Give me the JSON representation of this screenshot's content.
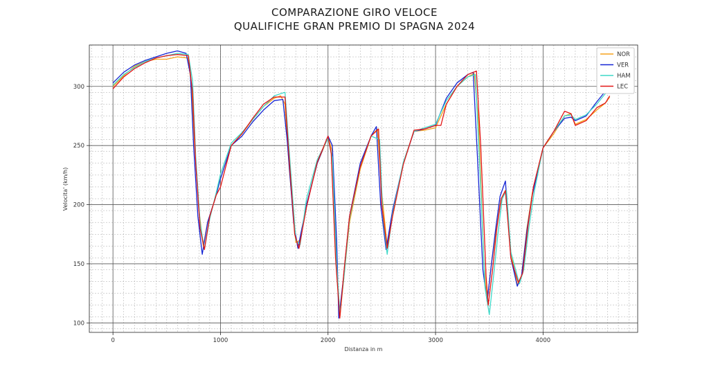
{
  "chart_data": {
    "type": "line",
    "title": "COMPARAZIONE GIRO VELOCE",
    "subtitle": "QUALIFICHE GRAN PREMIO DI SPAGNA 2024",
    "xlabel": "Distanza in m",
    "ylabel": "Velocita' (km/h)",
    "xlim": [
      -220,
      4880
    ],
    "ylim": [
      92,
      335
    ],
    "xticks": [
      0,
      1000,
      2000,
      3000,
      4000
    ],
    "xtick_labels": [
      "0",
      "1000",
      "2000",
      "3000",
      "4000"
    ],
    "yticks": [
      100,
      150,
      200,
      250,
      300
    ],
    "ytick_labels": [
      "100",
      "150",
      "200",
      "250",
      "300"
    ],
    "grid": true,
    "legend_position": "top-right",
    "series": [
      {
        "name": "NOR",
        "color": "#f5a21b",
        "x": [
          0,
          100,
          200,
          300,
          400,
          500,
          600,
          700,
          730,
          760,
          800,
          840,
          880,
          950,
          1000,
          1100,
          1200,
          1300,
          1400,
          1500,
          1560,
          1600,
          1640,
          1700,
          1740,
          1800,
          1900,
          2000,
          2040,
          2080,
          2110,
          2150,
          2200,
          2300,
          2400,
          2460,
          2500,
          2550,
          2600,
          2700,
          2800,
          2900,
          3000,
          3100,
          3200,
          3300,
          3360,
          3400,
          3450,
          3480,
          3520,
          3560,
          3600,
          3650,
          3700,
          3760,
          3800,
          3850,
          3900,
          4000,
          4100,
          4200,
          4260,
          4300,
          4400,
          4500,
          4580,
          4620
        ],
        "y": [
          300,
          309,
          317,
          321,
          323,
          323,
          325,
          324,
          300,
          250,
          195,
          165,
          185,
          205,
          222,
          250,
          260,
          272,
          283,
          290,
          292,
          285,
          230,
          168,
          170,
          200,
          235,
          257,
          245,
          150,
          105,
          140,
          185,
          230,
          258,
          264,
          210,
          165,
          190,
          235,
          262,
          263,
          265,
          285,
          300,
          308,
          311,
          270,
          150,
          118,
          150,
          175,
          200,
          212,
          160,
          132,
          140,
          180,
          210,
          248,
          260,
          275,
          277,
          268,
          272,
          280,
          286,
          291
        ]
      },
      {
        "name": "VER",
        "color": "#1524d4",
        "x": [
          0,
          100,
          200,
          300,
          400,
          500,
          600,
          680,
          720,
          750,
          790,
          830,
          880,
          950,
          1000,
          1100,
          1200,
          1300,
          1400,
          1500,
          1580,
          1620,
          1680,
          1720,
          1800,
          1900,
          2000,
          2040,
          2080,
          2100,
          2140,
          2200,
          2300,
          2400,
          2450,
          2490,
          2540,
          2600,
          2700,
          2800,
          2900,
          3000,
          3100,
          3200,
          3300,
          3350,
          3390,
          3440,
          3480,
          3520,
          3560,
          3600,
          3650,
          3700,
          3760,
          3800,
          3850,
          3900,
          4000,
          4100,
          4200,
          4260,
          4300,
          4400,
          4500,
          4580,
          4620
        ],
        "y": [
          303,
          312,
          318,
          322,
          325,
          328,
          330,
          328,
          310,
          250,
          190,
          158,
          185,
          205,
          222,
          250,
          258,
          270,
          280,
          288,
          289,
          255,
          185,
          163,
          200,
          235,
          258,
          250,
          170,
          104,
          135,
          190,
          235,
          258,
          266,
          200,
          162,
          195,
          235,
          262,
          264,
          267,
          290,
          303,
          310,
          312,
          240,
          145,
          118,
          150,
          180,
          207,
          220,
          155,
          131,
          140,
          178,
          208,
          248,
          262,
          273,
          274,
          271,
          275,
          287,
          296,
          300
        ]
      },
      {
        "name": "HAM",
        "color": "#3fd8c8",
        "x": [
          0,
          100,
          200,
          300,
          400,
          500,
          600,
          700,
          740,
          770,
          810,
          850,
          900,
          960,
          1000,
          1100,
          1200,
          1300,
          1400,
          1500,
          1600,
          1640,
          1700,
          1740,
          1800,
          1900,
          2000,
          2040,
          2080,
          2110,
          2150,
          2200,
          2300,
          2400,
          2480,
          2510,
          2550,
          2600,
          2700,
          2800,
          2900,
          3000,
          3100,
          3200,
          3300,
          3370,
          3410,
          3460,
          3500,
          3540,
          3580,
          3620,
          3660,
          3700,
          3780,
          3820,
          3870,
          3920,
          4000,
          4100,
          4200,
          4260,
          4300,
          4400,
          4500,
          4580,
          4620
        ],
        "y": [
          301,
          310,
          316,
          321,
          324,
          326,
          328,
          327,
          305,
          240,
          185,
          162,
          188,
          210,
          226,
          252,
          261,
          272,
          283,
          292,
          295,
          245,
          170,
          166,
          205,
          238,
          256,
          240,
          150,
          108,
          140,
          188,
          232,
          258,
          255,
          190,
          158,
          192,
          236,
          262,
          265,
          268,
          288,
          300,
          308,
          310,
          235,
          130,
          107,
          140,
          175,
          205,
          212,
          160,
          133,
          145,
          182,
          212,
          248,
          262,
          275,
          276,
          272,
          276,
          285,
          294,
          298
        ]
      },
      {
        "name": "LEC",
        "color": "#e21515",
        "x": [
          0,
          100,
          200,
          300,
          400,
          500,
          600,
          700,
          740,
          770,
          810,
          850,
          900,
          960,
          1000,
          1100,
          1200,
          1300,
          1400,
          1500,
          1600,
          1630,
          1690,
          1730,
          1800,
          1900,
          2000,
          2030,
          2070,
          2110,
          2150,
          2200,
          2300,
          2400,
          2470,
          2500,
          2550,
          2600,
          2700,
          2800,
          2900,
          3000,
          3050,
          3100,
          3200,
          3300,
          3380,
          3420,
          3470,
          3490,
          3530,
          3570,
          3610,
          3650,
          3700,
          3770,
          3810,
          3860,
          3910,
          4000,
          4100,
          4200,
          4260,
          4300,
          4400,
          4500,
          4580,
          4620
        ],
        "y": [
          298,
          308,
          315,
          320,
          324,
          326,
          327,
          326,
          295,
          235,
          180,
          162,
          190,
          208,
          215,
          250,
          260,
          273,
          285,
          291,
          291,
          250,
          175,
          163,
          198,
          236,
          258,
          243,
          155,
          104,
          145,
          190,
          232,
          258,
          264,
          200,
          163,
          190,
          234,
          263,
          264,
          267,
          267,
          285,
          300,
          310,
          313,
          250,
          140,
          115,
          145,
          180,
          205,
          212,
          155,
          134,
          142,
          182,
          215,
          248,
          262,
          279,
          277,
          267,
          271,
          282,
          286,
          292
        ]
      }
    ]
  }
}
